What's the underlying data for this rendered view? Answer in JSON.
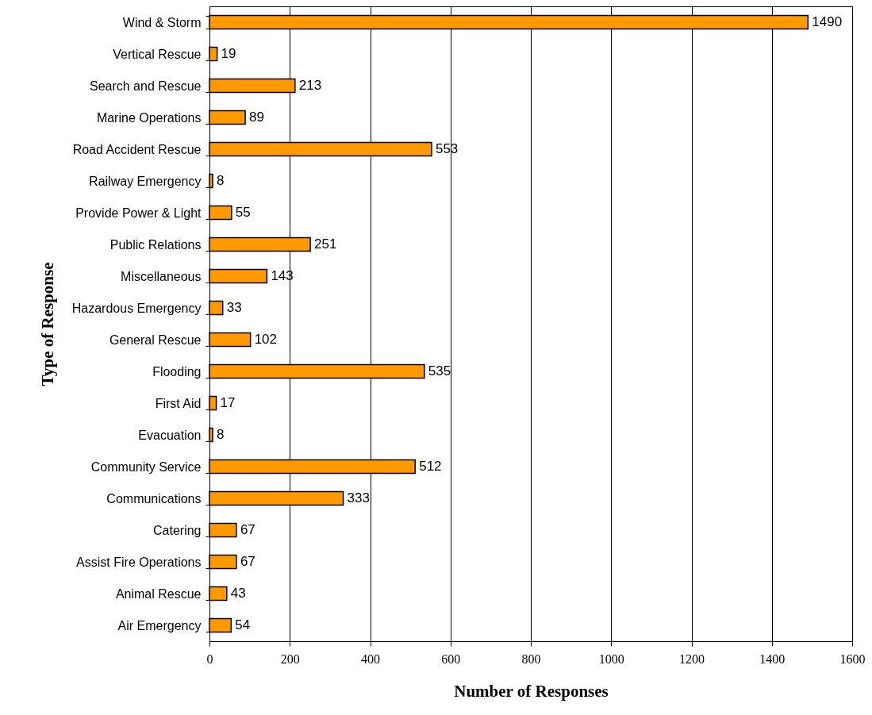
{
  "chart_data": {
    "type": "bar",
    "orientation": "horizontal",
    "xlabel": "Number of Responses",
    "ylabel": "Type of Response",
    "categories": [
      "Wind & Storm",
      "Vertical Rescue",
      "Search and Rescue",
      "Marine Operations",
      "Road Accident Rescue",
      "Railway Emergency",
      "Provide Power & Light",
      "Public Relations",
      "Miscellaneous",
      "Hazardous Emergency",
      "General Rescue",
      "Flooding",
      "First Aid",
      "Evacuation",
      "Community Service",
      "Communications",
      "Catering",
      "Assist Fire Operations",
      "Animal Rescue",
      "Air Emergency"
    ],
    "values": [
      1490,
      19,
      213,
      89,
      553,
      8,
      55,
      251,
      143,
      33,
      102,
      535,
      17,
      8,
      512,
      333,
      67,
      67,
      43,
      54
    ],
    "color": "#ff9900",
    "xlim": [
      0,
      1600
    ],
    "xticks": [
      0,
      200,
      400,
      600,
      800,
      1000,
      1200,
      1400,
      1600
    ],
    "grid": "x",
    "data_labels": true
  }
}
